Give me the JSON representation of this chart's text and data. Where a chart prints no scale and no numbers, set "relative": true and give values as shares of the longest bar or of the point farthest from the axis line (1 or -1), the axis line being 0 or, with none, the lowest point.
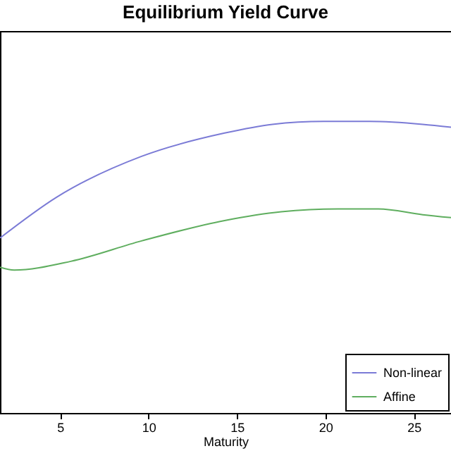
{
  "chart_data": {
    "type": "line",
    "title": "Equilibrium Yield Curve",
    "xlabel": "Maturity",
    "relative": true,
    "xlim": [
      1.6,
      27.1
    ],
    "xticks": [
      5,
      10,
      15,
      20,
      25
    ],
    "legend": "bottom right",
    "line_style": "solid",
    "series": [
      {
        "name": "Non-linear",
        "color": "#7b7bd6",
        "x": [
          1.6,
          4.8,
          9.6,
          14.3,
          17,
          19.9,
          22.5,
          25.5,
          27.1
        ],
        "values": [
          0.6,
          0.74,
          0.88,
          0.96,
          0.99,
          1.0,
          1.0,
          0.99,
          0.98
        ]
      },
      {
        "name": "Affine",
        "color": "#5fae5f",
        "x": [
          1.6,
          2.4,
          5.6,
          9.6,
          14.3,
          17.5,
          20.7,
          23,
          25.5,
          27.1
        ],
        "values": [
          0.5,
          0.49,
          0.52,
          0.59,
          0.66,
          0.69,
          0.7,
          0.7,
          0.68,
          0.67
        ]
      }
    ]
  }
}
